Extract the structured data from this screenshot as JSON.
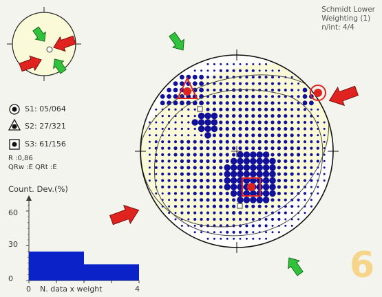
{
  "header": {
    "projection": "Schmidt Lower",
    "weighting": "Weighting (1)",
    "n_int": "n/int: 4/4"
  },
  "legend": {
    "s1": "S1: 05/064",
    "s2": "S2: 27/321",
    "s3": "S3: 61/156",
    "r_value": "R :0,86",
    "qr": "QRw :E  QRt :E"
  },
  "histogram": {
    "title": "Count. Dev.(%)",
    "xlabel": "N. data x weight",
    "x_ticks": [
      "0",
      "4"
    ],
    "y_ticks": [
      "0",
      "30",
      "60"
    ]
  },
  "chart_data": {
    "type": "bar",
    "title": "Count. Dev.(%)",
    "xlabel": "N. data x weight",
    "ylabel": "",
    "xlim": [
      0,
      4
    ],
    "ylim": [
      0,
      70
    ],
    "bins": [
      [
        0,
        2
      ],
      [
        2,
        4
      ]
    ],
    "values": [
      25,
      14
    ]
  },
  "panel_number": "6",
  "colors": {
    "dot": "#10109a",
    "fill": "#fbfad8",
    "arrow_red": "#e0231f",
    "arrow_green": "#2fc23a",
    "bar": "#0b22c9",
    "marker_red": "#e0231f"
  }
}
